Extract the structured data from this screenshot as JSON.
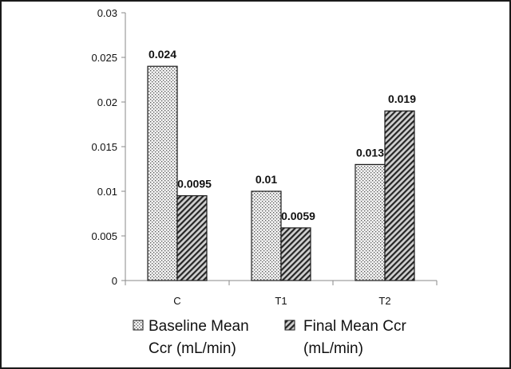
{
  "chart_data": {
    "type": "bar",
    "categories": [
      "C",
      "T1",
      "T2"
    ],
    "series": [
      {
        "name_lines": [
          "Baseline Mean",
          "Ccr (mL/min)"
        ],
        "values": [
          0.024,
          0.01,
          0.013
        ],
        "value_labels": [
          "0.024",
          "0.01",
          "0.013"
        ],
        "pattern": "dots"
      },
      {
        "name_lines": [
          "Final Mean Ccr",
          "(mL/min)"
        ],
        "values": [
          0.0095,
          0.0059,
          0.019
        ],
        "value_labels": [
          "0.0095",
          "0.0059",
          "0.019"
        ],
        "pattern": "diagonal-hatch"
      }
    ],
    "yticks": [
      "0",
      "0.005",
      "0.01",
      "0.015",
      "0.02",
      "0.025",
      "0.03"
    ],
    "ylim": [
      0,
      0.03
    ],
    "grid": false,
    "legend_position": "bottom"
  }
}
